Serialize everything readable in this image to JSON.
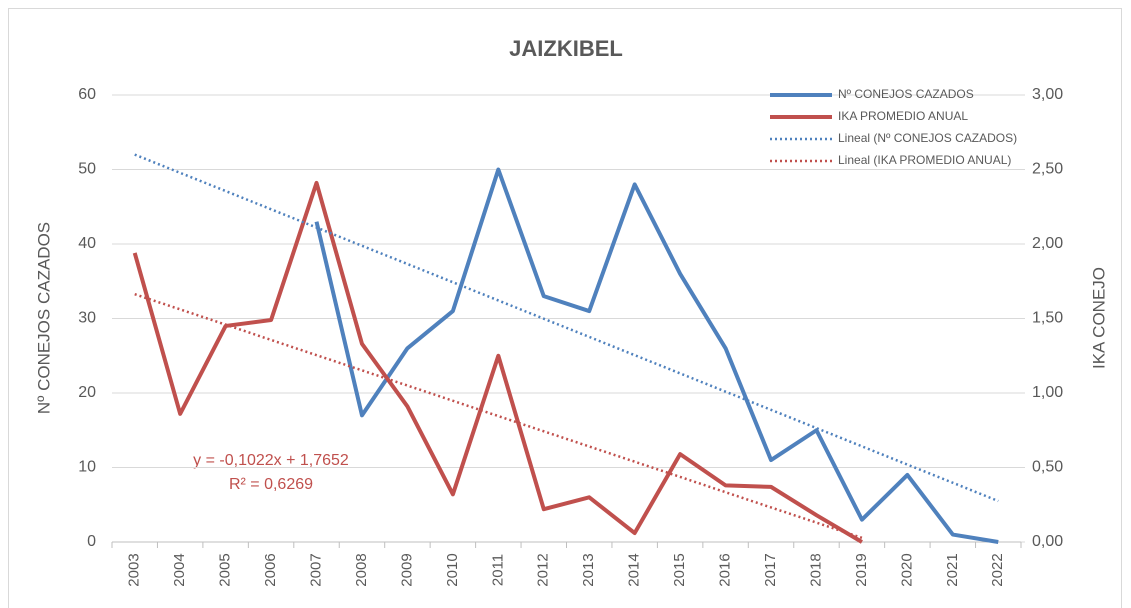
{
  "chart_data": {
    "type": "line",
    "title": "JAIZKIBEL",
    "y_label": "Nº CONEJOS CAZADOS",
    "y2_label": "IKA CONEJO",
    "categories": [
      "2003",
      "2004",
      "2005",
      "2006",
      "2007",
      "2008",
      "2009",
      "2010",
      "2011",
      "2012",
      "2013",
      "2014",
      "2015",
      "2016",
      "2017",
      "2018",
      "2019",
      "2020",
      "2021",
      "2022"
    ],
    "series": [
      {
        "name": "Nº CONEJOS CAZADOS",
        "color": "#4f81bd",
        "axis": "y",
        "style": "solid",
        "values": [
          null,
          null,
          null,
          null,
          43,
          17,
          26,
          31,
          50,
          33,
          31,
          48,
          36,
          26,
          11,
          15,
          3,
          9,
          1,
          0
        ]
      },
      {
        "name": "IKA PROMEDIO ANUAL",
        "color": "#c0504d",
        "axis": "y2",
        "style": "solid",
        "values": [
          1.94,
          0.86,
          1.45,
          1.49,
          2.41,
          1.33,
          0.91,
          0.32,
          1.25,
          0.22,
          0.3,
          0.06,
          0.59,
          0.38,
          0.37,
          0.18,
          0.0,
          null,
          null,
          null
        ]
      },
      {
        "name": "Lineal (Nº CONEJOS CAZADOS)",
        "color": "#4f81bd",
        "axis": "y",
        "style": "dotted",
        "values": [
          52,
          49.55,
          47.11,
          44.66,
          42.21,
          39.76,
          37.32,
          34.87,
          32.42,
          29.97,
          27.53,
          25.08,
          22.63,
          20.18,
          17.74,
          15.29,
          12.84,
          10.39,
          7.95,
          5.5
        ]
      },
      {
        "name": "Lineal (IKA PROMEDIO ANUAL)",
        "color": "#c0504d",
        "axis": "y2",
        "style": "dotted",
        "values": [
          1.663,
          1.561,
          1.459,
          1.356,
          1.254,
          1.152,
          1.05,
          0.948,
          0.845,
          0.743,
          0.641,
          0.539,
          0.437,
          0.334,
          0.232,
          0.13,
          0.028,
          null,
          null,
          null
        ]
      }
    ],
    "annotations": [
      "y = -0,1022x + 1,7652",
      "R² = 0,6269"
    ],
    "ylim": [
      0,
      60
    ],
    "yticks": [
      0,
      10,
      20,
      30,
      40,
      50,
      60
    ],
    "y2lim": [
      0,
      3
    ],
    "y2ticks": [
      {
        "value": 0,
        "label": "0,00"
      },
      {
        "value": 0.5,
        "label": "0,50"
      },
      {
        "value": 1,
        "label": "1,00"
      },
      {
        "value": 1.5,
        "label": "1,50"
      },
      {
        "value": 2,
        "label": "2,00"
      },
      {
        "value": 2.5,
        "label": "2,50"
      },
      {
        "value": 3,
        "label": "3,00"
      }
    ],
    "grid": true,
    "legend": "top-right"
  }
}
